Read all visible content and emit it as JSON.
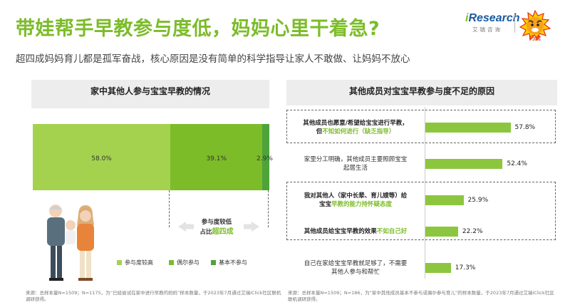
{
  "header": {
    "title": "带娃帮手早教参与度低，妈妈心里干着急?",
    "subtitle": "超四成妈妈育儿都是孤军奋战，核心原因是没有简单的科学指导让家人不敢做、让妈妈不放心",
    "brand_i": "i",
    "brand_name": "Research",
    "brand_sub": "艾瑞咨询",
    "partner_logo": "巧虎",
    "partner_label": "巧虎"
  },
  "icons": {
    "family": "family-illustration",
    "arrow_left": "arrow-left-icon",
    "arrow_right": "arrow-right-icon"
  },
  "colors": {
    "accent": "#7cbc29",
    "high": "#a5d24e",
    "occasional": "#7cbc29",
    "none": "#4ea33a",
    "bar": "#8cc63f",
    "panel": "#ededed"
  },
  "left_chart": {
    "title": "家中其他人参与宝宝早教的情况",
    "callout_line1": "参与度较低",
    "callout_line2_prefix": "占比",
    "callout_line2_highlight": "超四成",
    "source": "来源：总样本量N=1509；N=1175，为“已经尝试在家中进行早教的妈妈”样本数量，于2023年7月通过艾瑞iClick社区联机调研获得。"
  },
  "right_chart": {
    "title": "其他成员对宝宝早教参与度不足的原因",
    "source": "来源：总样本量N=1509；N=186，为“家中其他成员基本不参与或偶尔参与育儿”的样本数量，于2023年7月通过艾瑞iClick社区联机调研获得。",
    "categories": [
      {
        "lines": [
          {
            "parts": [
              {
                "text": "其他成员也愿意/希望给宝宝进行早教，",
                "hl": false
              }
            ]
          },
          {
            "parts": [
              {
                "text": "但",
                "hl": false
              },
              {
                "text": "不知如何进行（缺乏指导）",
                "hl": true
              }
            ]
          }
        ],
        "bold": true
      },
      {
        "lines": [
          {
            "parts": [
              {
                "text": "家里分工明确，其他成员主要照顾宝宝",
                "hl": false
              }
            ]
          },
          {
            "parts": [
              {
                "text": "起居生活",
                "hl": false
              }
            ]
          }
        ],
        "bold": false
      },
      {
        "lines": [
          {
            "parts": [
              {
                "text": "我对其他人（家中长辈、育儿嫂等）给",
                "hl": false
              }
            ]
          },
          {
            "parts": [
              {
                "text": "宝宝",
                "hl": false
              },
              {
                "text": "早教的能力持怀疑态度",
                "hl": true
              }
            ]
          }
        ],
        "bold": true
      },
      {
        "lines": [
          {
            "parts": [
              {
                "text": "其他成员给宝宝早教的效果",
                "hl": false
              },
              {
                "text": "不如自己好",
                "hl": true
              }
            ]
          }
        ],
        "bold": true
      },
      {
        "lines": [
          {
            "parts": [
              {
                "text": "自己在家给宝宝早教就足够了，不需要",
                "hl": false
              }
            ]
          },
          {
            "parts": [
              {
                "text": "其他人参与和帮忙",
                "hl": false
              }
            ]
          }
        ],
        "bold": false
      }
    ]
  },
  "chart_data": [
    {
      "type": "bar",
      "orientation": "horizontal-stacked",
      "title": "家中其他人参与宝宝早教的情况",
      "series": [
        {
          "name": "参与度较高",
          "value": 58.0,
          "label": "58.0%",
          "color": "#a5d24e"
        },
        {
          "name": "偶尔参与",
          "value": 39.1,
          "label": "39.1%",
          "color": "#7cbc29"
        },
        {
          "name": "基本不参与",
          "value": 2.9,
          "label": "2.9%",
          "color": "#4ea33a"
        }
      ],
      "legend_position": "bottom",
      "grid": false
    },
    {
      "type": "bar",
      "orientation": "horizontal",
      "title": "其他成员对宝宝早教参与度不足的原因",
      "categories": [
        "其他成员也愿意/希望给宝宝进行早教，但不知如何进行（缺乏指导）",
        "家里分工明确，其他成员主要照顾宝宝起居生活",
        "我对其他人（家中长辈、育儿嫂等）给宝宝早教的能力持怀疑态度",
        "其他成员给宝宝早教的效果不如自己好",
        "自己在家给宝宝早教就足够了，不需要其他人参与和帮忙"
      ],
      "values": [
        57.8,
        52.4,
        25.9,
        22.2,
        17.3
      ],
      "labels": [
        "57.8%",
        "52.4%",
        "25.9%",
        "22.2%",
        "17.3%"
      ],
      "xlim": [
        0,
        100
      ],
      "grid": false
    }
  ]
}
